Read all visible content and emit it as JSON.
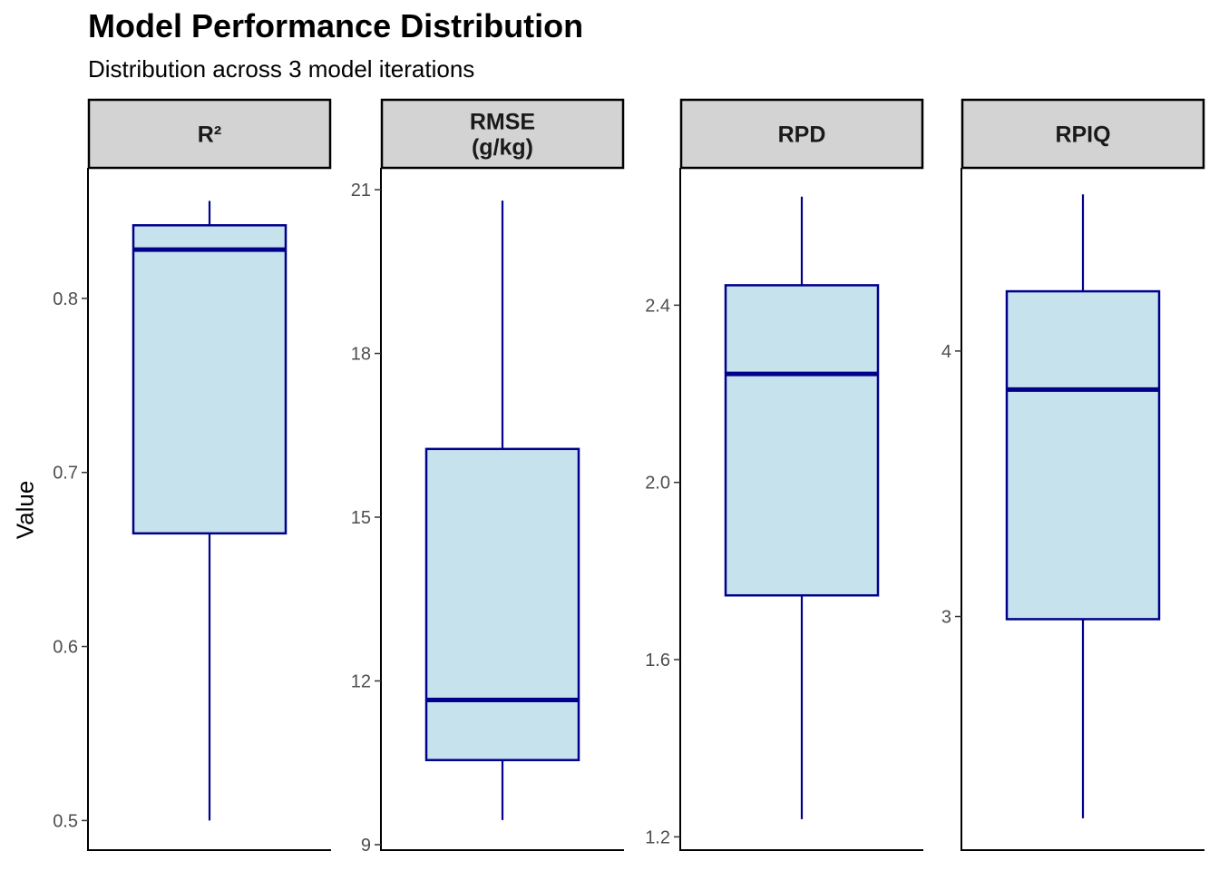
{
  "chart_data": {
    "type": "boxplot",
    "title": "Model Performance Distribution",
    "subtitle": "Distribution across 3 model iterations",
    "xlabel": "",
    "ylabel": "Value",
    "grid": false,
    "colors": {
      "box_fill": "#c6e2ed",
      "box_line": "#00008b",
      "strip_fill": "#d3d3d3"
    },
    "panels": [
      {
        "label": [
          "R²"
        ],
        "ylim": [
          0.483,
          0.875
        ],
        "ticks": [
          0.5,
          0.6,
          0.7,
          0.8
        ],
        "tick_labels": [
          "0.5",
          "0.6",
          "0.7",
          "0.8"
        ],
        "min": 0.5,
        "q1": 0.665,
        "median": 0.828,
        "q3": 0.842,
        "max": 0.856
      },
      {
        "label": [
          "RMSE",
          "(g/kg)"
        ],
        "ylim": [
          8.9,
          21.4
        ],
        "ticks": [
          9,
          12,
          15,
          18,
          21
        ],
        "tick_labels": [
          "9",
          "12",
          "15",
          "18",
          "21"
        ],
        "min": 9.45,
        "q1": 10.55,
        "median": 11.65,
        "q3": 16.25,
        "max": 20.8
      },
      {
        "label": [
          "RPD"
        ],
        "ylim": [
          1.17,
          2.71
        ],
        "ticks": [
          1.2,
          1.6,
          2.0,
          2.4
        ],
        "tick_labels": [
          "1.2",
          "1.6",
          "2.0",
          "2.4"
        ],
        "min": 1.24,
        "q1": 1.745,
        "median": 2.245,
        "q3": 2.445,
        "max": 2.645
      },
      {
        "label": [
          "RPIQ"
        ],
        "ylim": [
          2.12,
          4.69
        ],
        "ticks": [
          3,
          4
        ],
        "tick_labels": [
          "3",
          "4"
        ],
        "min": 2.24,
        "q1": 2.99,
        "median": 3.855,
        "q3": 4.225,
        "max": 4.59
      }
    ]
  }
}
